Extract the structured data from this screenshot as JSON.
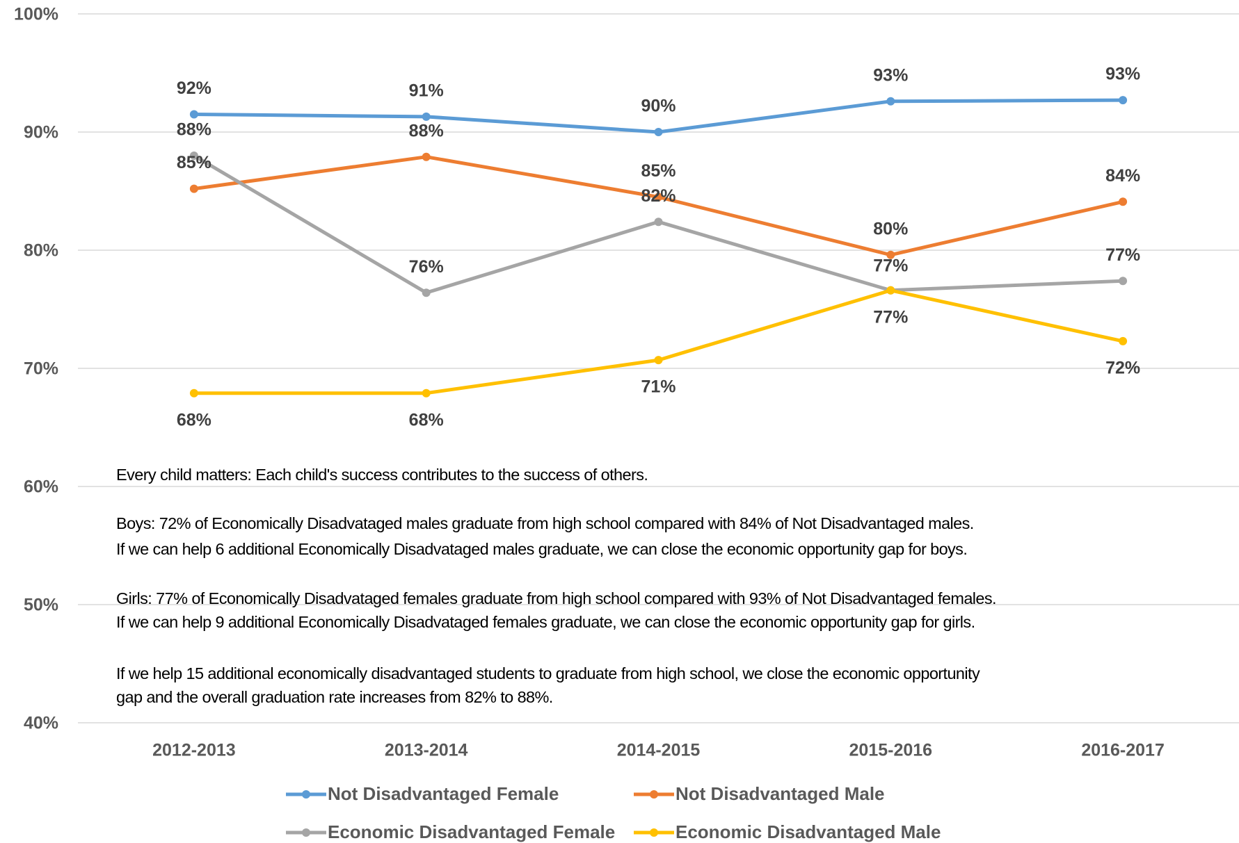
{
  "chart_data": {
    "type": "line",
    "categories": [
      "2012-2013",
      "2013-2014",
      "2014-2015",
      "2015-2016",
      "2016-2017"
    ],
    "series": [
      {
        "name": "Not Disadvantaged Female",
        "color": "#5b9bd5",
        "values": [
          91.5,
          91.3,
          90.0,
          92.6,
          92.7
        ],
        "value_labels": [
          "92%",
          "91%",
          "90%",
          "93%",
          "93%"
        ]
      },
      {
        "name": "Not Disadvantaged Male",
        "color": "#ed7d31",
        "values": [
          85.2,
          87.9,
          84.5,
          79.6,
          84.1
        ],
        "value_labels": [
          "85%",
          "88%",
          "85%",
          "80%",
          "84%"
        ]
      },
      {
        "name": "Economic Disadvantaged Female",
        "color": "#a5a5a5",
        "values": [
          88.0,
          76.4,
          82.4,
          76.6,
          77.4
        ],
        "value_labels": [
          "88%",
          "76%",
          "82%",
          "77%",
          "77%"
        ]
      },
      {
        "name": "Economic Disadvantaged Male",
        "color": "#ffc000",
        "values": [
          67.9,
          67.9,
          70.7,
          76.6,
          72.3
        ],
        "value_labels": [
          "68%",
          "68%",
          "71%",
          "77%",
          "72%"
        ]
      }
    ],
    "ylim": [
      40,
      100
    ],
    "yticks": [
      {
        "value": 40,
        "label": "40%"
      },
      {
        "value": 50,
        "label": "50%"
      },
      {
        "value": 60,
        "label": "60%"
      },
      {
        "value": 70,
        "label": "70%"
      },
      {
        "value": 80,
        "label": "80%"
      },
      {
        "value": 90,
        "label": "90%"
      },
      {
        "value": 100,
        "label": "100%"
      }
    ],
    "grid": true,
    "legend": "bottom",
    "annotations": [
      "Every child matters: Each child's success contributes to the success of others.",
      "Boys: 72% of Economically Disadvataged males graduate from high school compared with 84% of Not Disadvantaged males.",
      "If we can help 6 additional Economically Disadvataged males graduate, we can close the economic opportunity gap for boys.",
      "Girls: 77% of Economically Disadvataged females graduate from high school compared with 93% of Not Disadvantaged females.",
      "If we can help 9 additional Economically Disadvataged females graduate, we can close the economic opportunity gap for girls.",
      "If we help 15 additional economically disadvantaged students to graduate from high school, we close the economic opportunity",
      "gap and the overall graduation rate increases from 82% to 88%."
    ]
  }
}
